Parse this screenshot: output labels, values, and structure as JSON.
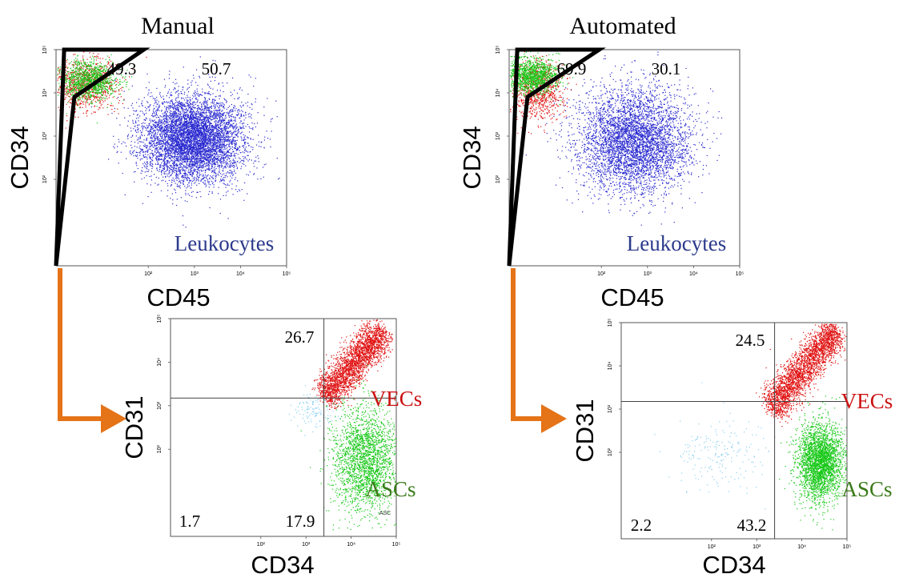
{
  "colors": {
    "leukocytes": "#2a2ad0",
    "vec": "#e01010",
    "asc": "#18c818",
    "other": "#8ccff0",
    "gate": "#000000",
    "arrow": "#e57318",
    "vec_label": "#cc1111",
    "asc_label": "#3a7a1a",
    "leuk_label": "#2c3a8c"
  },
  "chart_data": [
    {
      "type": "scatter",
      "panel": "manual-cd34-cd45",
      "title": "Manual",
      "xlabel": "CD45",
      "ylabel": "CD34",
      "scale": "log",
      "xlim": [
        1,
        100000
      ],
      "ylim": [
        1,
        100000
      ],
      "x_ticks": [
        "10²",
        "10³",
        "10⁴",
        "10⁵"
      ],
      "y_ticks": [
        "10²",
        "10³",
        "10⁴",
        "10⁵"
      ],
      "gate_percent": "49.3",
      "outside_percent": "50.7",
      "population_label": "Leukocytes",
      "gate_polygon": [
        [
          1.5,
          100000
        ],
        [
          80,
          100000
        ],
        [
          2.5,
          8000
        ],
        [
          0.6,
          1
        ],
        [
          0.5,
          1
        ]
      ],
      "populations": [
        {
          "name": "Leukocytes",
          "color_key": "leukocytes",
          "center": [
            900,
            900
          ],
          "spread": [
            0.55,
            0.5
          ],
          "count": 6000
        },
        {
          "name": "VECs",
          "color_key": "vec",
          "center": [
            4,
            16000
          ],
          "spread": [
            0.35,
            0.3
          ],
          "count": 900
        },
        {
          "name": "ASCs",
          "color_key": "asc",
          "center": [
            5,
            20000
          ],
          "spread": [
            0.3,
            0.22
          ],
          "count": 1100
        }
      ]
    },
    {
      "type": "scatter",
      "panel": "automated-cd34-cd45",
      "title": "Automated",
      "xlabel": "CD45",
      "ylabel": "CD34",
      "scale": "log",
      "xlim": [
        1,
        100000
      ],
      "ylim": [
        1,
        100000
      ],
      "x_ticks": [
        "10²",
        "10³",
        "10⁴",
        "10⁵"
      ],
      "y_ticks": [
        "10²",
        "10³",
        "10⁴",
        "10⁵"
      ],
      "gate_percent": "69.9",
      "outside_percent": "30.1",
      "population_label": "Leukocytes",
      "gate_polygon": [
        [
          1.5,
          100000
        ],
        [
          90,
          100000
        ],
        [
          2.5,
          8000
        ],
        [
          0.6,
          1
        ],
        [
          0.5,
          1
        ]
      ],
      "populations": [
        {
          "name": "Leukocytes",
          "color_key": "leukocytes",
          "center": [
            500,
            800
          ],
          "spread": [
            0.6,
            0.6
          ],
          "count": 4500
        },
        {
          "name": "VECs",
          "color_key": "vec",
          "center": [
            4,
            12000
          ],
          "spread": [
            0.3,
            0.35
          ],
          "count": 900
        },
        {
          "name": "ASCs",
          "color_key": "asc",
          "center": [
            3,
            25000
          ],
          "spread": [
            0.3,
            0.2
          ],
          "count": 1300
        }
      ]
    },
    {
      "type": "scatter",
      "panel": "manual-cd31-cd34",
      "xlabel": "CD34",
      "ylabel": "CD31",
      "scale": "log",
      "xlim": [
        1,
        100000
      ],
      "ylim": [
        1,
        100000
      ],
      "x_ticks": [
        "10²",
        "10³",
        "10⁴",
        "10⁵"
      ],
      "y_ticks": [
        "10²",
        "10³",
        "10⁴",
        "10⁵"
      ],
      "quadrant_x": 2500,
      "quadrant_y": 1500,
      "quadrants": {
        "upper_right": "26.7",
        "lower_left": "1.7",
        "lower_right": "17.9"
      },
      "upper_label": "VECs",
      "lower_label": "ASCs",
      "small_label": "ASC",
      "populations": [
        {
          "name": "VECs",
          "color_key": "vec",
          "diag": {
            "x0": 3.4,
            "y0": 3.2,
            "x1": 4.7,
            "y1": 4.75
          },
          "width": 0.18,
          "count": 2600
        },
        {
          "name": "ASCs",
          "color_key": "asc",
          "center": [
            20000,
            60
          ],
          "spread": [
            0.35,
            0.6
          ],
          "count": 2200
        },
        {
          "name": "other",
          "color_key": "other",
          "center": [
            1500,
            800
          ],
          "spread": [
            0.25,
            0.2
          ],
          "count": 120
        }
      ]
    },
    {
      "type": "scatter",
      "panel": "automated-cd31-cd34",
      "xlabel": "CD34",
      "ylabel": "CD31",
      "scale": "log",
      "xlim": [
        1,
        100000
      ],
      "ylim": [
        1,
        100000
      ],
      "x_ticks": [
        "10²",
        "10³",
        "10⁴",
        "10⁵"
      ],
      "y_ticks": [
        "10²",
        "10³",
        "10⁴",
        "10⁵"
      ],
      "quadrant_x": 2500,
      "quadrant_y": 1500,
      "quadrants": {
        "upper_right": "24.5",
        "lower_left": "2.2",
        "lower_right": "43.2"
      },
      "upper_label": "VECs",
      "lower_label": "ASCs",
      "populations": [
        {
          "name": "VECs",
          "color_key": "vec",
          "diag": {
            "x0": 3.3,
            "y0": 3.0,
            "x1": 4.75,
            "y1": 4.85
          },
          "width": 0.18,
          "count": 2800
        },
        {
          "name": "ASCs",
          "color_key": "asc",
          "center": [
            25000,
            60
          ],
          "spread": [
            0.25,
            0.45
          ],
          "count": 2800
        },
        {
          "name": "other",
          "color_key": "other",
          "center": [
            150,
            100
          ],
          "spread": [
            0.5,
            0.4
          ],
          "count": 200
        }
      ]
    }
  ]
}
